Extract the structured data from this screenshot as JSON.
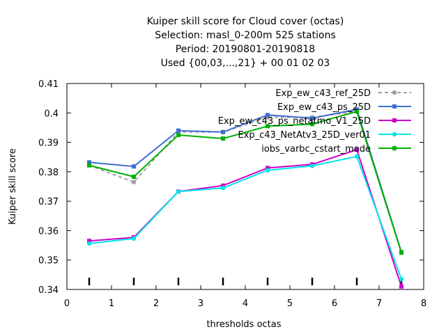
{
  "chart_data": {
    "type": "line",
    "title_lines": [
      "Kuiper skill score  for Cloud cover (octas)",
      "Selection: masl_0-200m    525 stations",
      "Period: 20190801-20190818",
      "Used {00,03,...,21} + 00 01 02 03"
    ],
    "xlabel": "thresholds octas",
    "ylabel": "Kuiper skill score",
    "xlim": [
      0,
      8
    ],
    "ylim": [
      0.34,
      0.41
    ],
    "x_ticks": [
      0,
      1,
      2,
      3,
      4,
      5,
      6,
      7,
      8
    ],
    "y_ticks": [
      0.34,
      0.35,
      0.36,
      0.37,
      0.38,
      0.39,
      0.4,
      0.41
    ],
    "x_tick_labels": [
      "0",
      "1",
      "2",
      "3",
      "4",
      "5",
      "6",
      "7",
      "8"
    ],
    "y_tick_labels": [
      "0.34",
      "0.35",
      "0.36",
      "0.37",
      "0.38",
      "0.39",
      "0.4",
      "0.41"
    ],
    "grid": false,
    "legend_position": "top-right",
    "x": [
      0.5,
      1.5,
      2.5,
      3.5,
      4.5,
      5.5,
      6.5,
      7.5
    ],
    "series": [
      {
        "name": "Exp_ew_c43_ref_25D",
        "color": "#a0a0a0",
        "dashed": true,
        "marker": "circle",
        "values": [
          0.3822,
          0.3765,
          0.3935,
          0.3935,
          0.3985,
          0.3985,
          0.4005,
          0.3525
        ]
      },
      {
        "name": "Exp_ew_c43_ps_25D",
        "color": "#3f6fd1",
        "dashed": false,
        "marker": "square",
        "values": [
          0.3832,
          0.3818,
          0.394,
          0.3935,
          0.3993,
          0.3982,
          0.4012,
          0.3527
        ]
      },
      {
        "name": "Exp_ew_c43_ps_netatmo_V1_25D",
        "color": "#cc00cc",
        "dashed": false,
        "marker": "square",
        "values": [
          0.3565,
          0.3577,
          0.3733,
          0.3753,
          0.3813,
          0.3825,
          0.3875,
          0.341
        ]
      },
      {
        "name": "Exp_c43_NetAtv3_25D_ver01",
        "color": "#00e5e5",
        "dashed": false,
        "marker": "circle",
        "values": [
          0.3556,
          0.3573,
          0.3733,
          0.3745,
          0.3805,
          0.382,
          0.3852,
          0.3435
        ]
      },
      {
        "name": "iobs_varbc_cstart_mode",
        "color": "#00b000",
        "dashed": false,
        "marker": "square",
        "values": [
          0.3822,
          0.3783,
          0.3925,
          0.3913,
          0.3955,
          0.3962,
          0.4005,
          0.3525
        ]
      }
    ]
  }
}
